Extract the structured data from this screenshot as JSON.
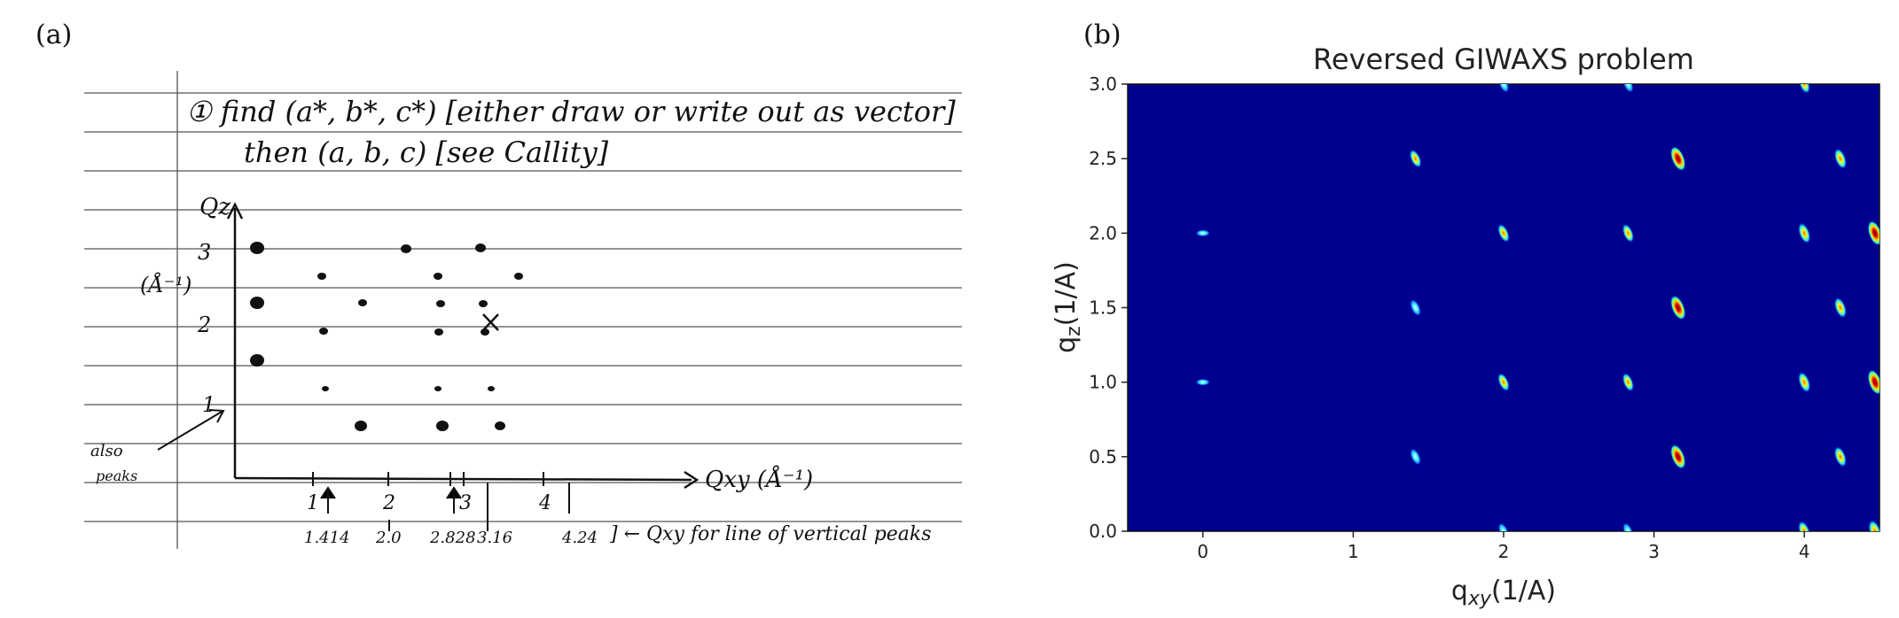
{
  "panel_a": {
    "label": "(a)",
    "note_line1": "① find (a*, b*, c*) [either draw or write out as vector]",
    "note_line2": "then (a, b, c) [see Callity]",
    "axis_qz": "Qz",
    "axis_unit_left": "(Å⁻¹)",
    "axis_qxy": "Qxy (Å⁻¹)",
    "y_ticks": [
      "1",
      "2",
      "3"
    ],
    "x_ticks": [
      "1",
      "2",
      "3",
      "4"
    ],
    "vertical_values": [
      "1.414",
      "2.0",
      "2.828",
      "3.16",
      "4.24"
    ],
    "vertical_note": "] ← Qxy for line of vertical peaks",
    "also_peaks": [
      "also",
      "peaks"
    ]
  },
  "panel_b": {
    "label": "(b)"
  },
  "chart_data": {
    "type": "heatmap",
    "title": "Reversed GIWAXS problem",
    "xlabel": "q_xy(1/A)",
    "ylabel": "q_z(1/A)",
    "xlim": [
      -0.5,
      4.5
    ],
    "ylim": [
      0.0,
      3.0
    ],
    "x_ticks": [
      0,
      1,
      2,
      3,
      4
    ],
    "y_ticks": [
      0.0,
      0.5,
      1.0,
      1.5,
      2.0,
      2.5,
      3.0
    ],
    "colormap": "jet",
    "background_color": "#00008f",
    "peaks": [
      {
        "qxy": 0.0,
        "qz": 1.0,
        "intensity": 0.3
      },
      {
        "qxy": 0.0,
        "qz": 2.0,
        "intensity": 0.3
      },
      {
        "qxy": 1.414,
        "qz": 0.5,
        "intensity": 0.5
      },
      {
        "qxy": 1.414,
        "qz": 1.5,
        "intensity": 0.5
      },
      {
        "qxy": 1.414,
        "qz": 2.5,
        "intensity": 0.6
      },
      {
        "qxy": 2.0,
        "qz": 0.0,
        "intensity": 0.5
      },
      {
        "qxy": 2.0,
        "qz": 1.0,
        "intensity": 0.6
      },
      {
        "qxy": 2.0,
        "qz": 2.0,
        "intensity": 0.6
      },
      {
        "qxy": 2.0,
        "qz": 3.0,
        "intensity": 0.5
      },
      {
        "qxy": 2.828,
        "qz": 0.0,
        "intensity": 0.5
      },
      {
        "qxy": 2.828,
        "qz": 1.0,
        "intensity": 0.6
      },
      {
        "qxy": 2.828,
        "qz": 2.0,
        "intensity": 0.6
      },
      {
        "qxy": 2.828,
        "qz": 3.0,
        "intensity": 0.5
      },
      {
        "qxy": 3.16,
        "qz": 0.5,
        "intensity": 0.9
      },
      {
        "qxy": 3.16,
        "qz": 1.5,
        "intensity": 0.9
      },
      {
        "qxy": 3.16,
        "qz": 2.5,
        "intensity": 0.9
      },
      {
        "qxy": 4.0,
        "qz": 0.0,
        "intensity": 0.7
      },
      {
        "qxy": 4.0,
        "qz": 1.0,
        "intensity": 0.7
      },
      {
        "qxy": 4.0,
        "qz": 2.0,
        "intensity": 0.7
      },
      {
        "qxy": 4.0,
        "qz": 3.0,
        "intensity": 0.6
      },
      {
        "qxy": 4.24,
        "qz": 0.5,
        "intensity": 0.7
      },
      {
        "qxy": 4.24,
        "qz": 1.5,
        "intensity": 0.7
      },
      {
        "qxy": 4.24,
        "qz": 2.5,
        "intensity": 0.7
      },
      {
        "qxy": 4.47,
        "qz": 0.0,
        "intensity": 0.8
      },
      {
        "qxy": 4.47,
        "qz": 1.0,
        "intensity": 0.9
      },
      {
        "qxy": 4.47,
        "qz": 2.0,
        "intensity": 0.9
      }
    ]
  }
}
